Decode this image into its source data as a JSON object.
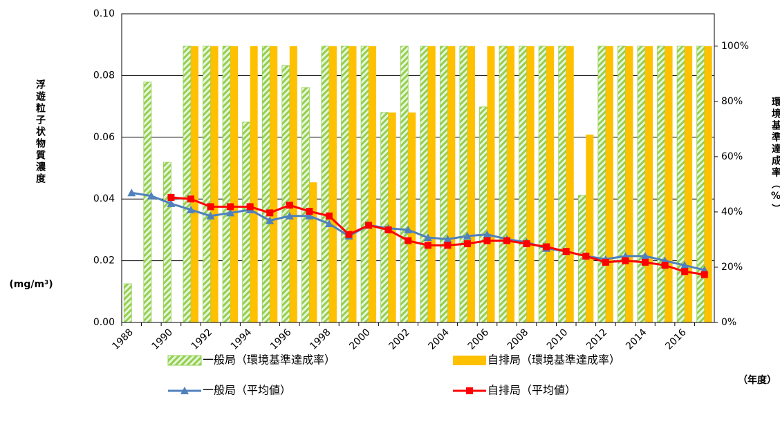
{
  "chart_data": {
    "type": "bar_line",
    "y_label": "浮遊粒子状物質濃度",
    "y_unit": "(mg/m³)",
    "y2_label": "環境基準達成率（%）",
    "x_label": "（年度）",
    "categories": [
      "1988",
      null,
      "1990",
      null,
      "1992",
      null,
      "1994",
      null,
      "1996",
      null,
      "1998",
      null,
      "2000",
      null,
      "2002",
      null,
      "2004",
      null,
      "2006",
      null,
      "2008",
      null,
      "2010",
      null,
      "2012",
      null,
      "2014",
      null,
      "2016",
      null
    ],
    "ylim": [
      0,
      0.1
    ],
    "yticks": [
      {
        "value": 0,
        "label": "0.00"
      },
      {
        "value": 0.02,
        "label": "0.02"
      },
      {
        "value": 0.04,
        "label": "0.04"
      },
      {
        "value": 0.06,
        "label": "0.06"
      },
      {
        "value": 0.08,
        "label": "0.08"
      },
      {
        "value": 0.1,
        "label": "0.10"
      }
    ],
    "y2lim": [
      0,
      111.7
    ],
    "y2ticks": [
      {
        "value": 0,
        "label": "0%"
      },
      {
        "value": 20,
        "label": "20%"
      },
      {
        "value": 40,
        "label": "40%"
      },
      {
        "value": 60,
        "label": "60%"
      },
      {
        "value": 80,
        "label": "80%"
      },
      {
        "value": 100,
        "label": "100%"
      }
    ],
    "grid": true,
    "series": [
      {
        "name": "一般局（環境基準達成率）",
        "kind": "bar",
        "axis": "y2",
        "color": "#92d050",
        "pattern": "hatch",
        "values": [
          14,
          87,
          58,
          100,
          100,
          100,
          72.5,
          100,
          93,
          85,
          100,
          100,
          100,
          76,
          100,
          100,
          100,
          100,
          78,
          100,
          100,
          100,
          100,
          46,
          100,
          100,
          100,
          100,
          100,
          100
        ]
      },
      {
        "name": "自排局（環境基準達成率）",
        "kind": "bar",
        "axis": "y2",
        "color": "#ffc000",
        "values": [
          null,
          null,
          null,
          100,
          100,
          100,
          100,
          100,
          100,
          50.7,
          100,
          100,
          100,
          76,
          76,
          100,
          100,
          100,
          100,
          100,
          100,
          100,
          100,
          68,
          100,
          100,
          100,
          100,
          100,
          100
        ]
      },
      {
        "name": "一般局（平均値）",
        "kind": "line",
        "color": "#4f81bd",
        "marker": "triangle",
        "values": [
          0.042,
          0.041,
          0.0385,
          0.0365,
          0.0345,
          0.0355,
          0.0365,
          0.033,
          0.0345,
          0.0345,
          0.032,
          0.028,
          0.0315,
          0.0305,
          0.03,
          0.0275,
          0.027,
          0.028,
          0.0285,
          0.027,
          0.026,
          0.024,
          0.023,
          0.0215,
          0.0205,
          0.0215,
          0.0215,
          0.02,
          0.0185,
          0.017
        ]
      },
      {
        "name": "自排局（平均値）",
        "kind": "line",
        "color": "#ff0000",
        "marker": "square",
        "values": [
          null,
          null,
          0.0405,
          0.04,
          0.0375,
          0.0375,
          0.0375,
          0.0355,
          0.038,
          0.036,
          0.0345,
          0.0285,
          0.0315,
          0.03,
          0.0265,
          0.025,
          0.025,
          0.0255,
          0.0265,
          0.0265,
          0.0255,
          0.0245,
          0.023,
          0.0215,
          0.0195,
          0.02,
          0.0195,
          0.0185,
          0.0165,
          0.0155
        ]
      }
    ]
  }
}
